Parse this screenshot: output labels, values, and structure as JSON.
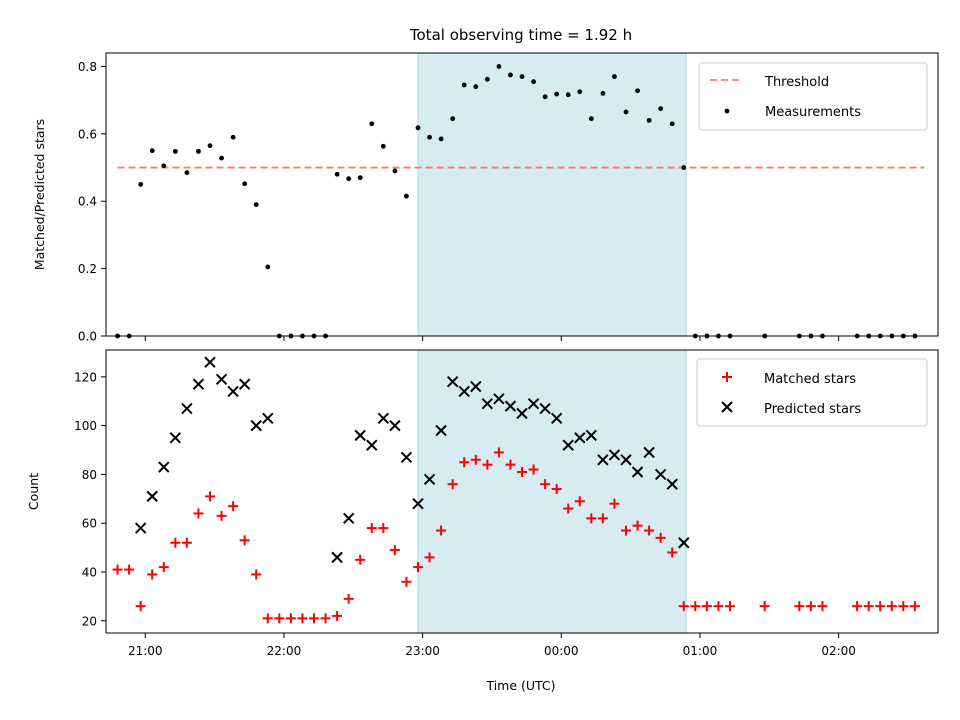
{
  "chart_data": [
    {
      "type": "scatter",
      "title": "Total observing time = 1.92 h",
      "xlabel": "",
      "ylabel": "Matched/Predicted stars",
      "xlim": [
        "20:43",
        "02:43"
      ],
      "ylim": [
        0,
        0.84
      ],
      "yticks": [
        0.0,
        0.2,
        0.4,
        0.6,
        0.8
      ],
      "ytick_labels": [
        "0.0",
        "0.2",
        "0.4",
        "0.6",
        "0.8"
      ],
      "grid": false,
      "legend_position": "top-right",
      "highlight_span": [
        "22:58",
        "00:54"
      ],
      "threshold": {
        "name": "Threshold",
        "y": 0.5,
        "x_range": [
          "20:48",
          "02:37"
        ],
        "color": "#ff7777",
        "style": "dashed"
      },
      "series": [
        {
          "name": "Measurements",
          "color": "#000000",
          "marker": "dot",
          "points": [
            [
              "20:48",
              0.0
            ],
            [
              "20:53",
              0.0
            ],
            [
              "20:58",
              0.45
            ],
            [
              "21:03",
              0.55
            ],
            [
              "21:08",
              0.505
            ],
            [
              "21:13",
              0.548
            ],
            [
              "21:18",
              0.485
            ],
            [
              "21:23",
              0.548
            ],
            [
              "21:28",
              0.565
            ],
            [
              "21:33",
              0.528
            ],
            [
              "21:38",
              0.59
            ],
            [
              "21:43",
              0.452
            ],
            [
              "21:48",
              0.39
            ],
            [
              "21:53",
              0.205
            ],
            [
              "21:58",
              0.0
            ],
            [
              "22:03",
              0.0
            ],
            [
              "22:08",
              0.0
            ],
            [
              "22:13",
              0.0
            ],
            [
              "22:18",
              0.0
            ],
            [
              "22:23",
              0.48
            ],
            [
              "22:28",
              0.467
            ],
            [
              "22:33",
              0.47
            ],
            [
              "22:38",
              0.63
            ],
            [
              "22:43",
              0.563
            ],
            [
              "22:48",
              0.49
            ],
            [
              "22:53",
              0.415
            ],
            [
              "22:58",
              0.618
            ],
            [
              "23:03",
              0.59
            ],
            [
              "23:08",
              0.585
            ],
            [
              "23:13",
              0.645
            ],
            [
              "23:18",
              0.745
            ],
            [
              "23:23",
              0.74
            ],
            [
              "23:28",
              0.762
            ],
            [
              "23:33",
              0.8
            ],
            [
              "23:38",
              0.775
            ],
            [
              "23:43",
              0.77
            ],
            [
              "23:48",
              0.755
            ],
            [
              "23:53",
              0.71
            ],
            [
              "23:58",
              0.718
            ],
            [
              "00:03",
              0.716
            ],
            [
              "00:08",
              0.725
            ],
            [
              "00:13",
              0.645
            ],
            [
              "00:18",
              0.72
            ],
            [
              "00:23",
              0.77
            ],
            [
              "00:28",
              0.665
            ],
            [
              "00:33",
              0.728
            ],
            [
              "00:38",
              0.64
            ],
            [
              "00:43",
              0.675
            ],
            [
              "00:48",
              0.63
            ],
            [
              "00:53",
              0.5
            ],
            [
              "00:58",
              0.0
            ],
            [
              "01:03",
              0.0
            ],
            [
              "01:08",
              0.0
            ],
            [
              "01:13",
              0.0
            ],
            [
              "01:28",
              0.0
            ],
            [
              "01:43",
              0.0
            ],
            [
              "01:48",
              0.0
            ],
            [
              "01:53",
              0.0
            ],
            [
              "02:08",
              0.0
            ],
            [
              "02:13",
              0.0
            ],
            [
              "02:18",
              0.0
            ],
            [
              "02:23",
              0.0
            ],
            [
              "02:28",
              0.0
            ],
            [
              "02:33",
              0.0
            ]
          ]
        }
      ]
    },
    {
      "type": "scatter",
      "title": "",
      "xlabel": "Time (UTC)",
      "ylabel": "Count",
      "xlim": [
        "20:43",
        "02:43"
      ],
      "ylim": [
        15,
        131
      ],
      "xticks": [
        "21:00",
        "22:00",
        "23:00",
        "00:00",
        "01:00",
        "02:00"
      ],
      "yticks": [
        20,
        40,
        60,
        80,
        100,
        120
      ],
      "grid": false,
      "legend_position": "top-right",
      "highlight_span": [
        "22:58",
        "00:54"
      ],
      "series": [
        {
          "name": "Matched stars",
          "color": "#ff0000",
          "marker": "plus",
          "points": [
            [
              "20:48",
              41
            ],
            [
              "20:53",
              41
            ],
            [
              "20:58",
              26
            ],
            [
              "21:03",
              39
            ],
            [
              "21:08",
              42
            ],
            [
              "21:13",
              52
            ],
            [
              "21:18",
              52
            ],
            [
              "21:23",
              64
            ],
            [
              "21:28",
              71
            ],
            [
              "21:33",
              63
            ],
            [
              "21:38",
              67
            ],
            [
              "21:43",
              53
            ],
            [
              "21:48",
              39
            ],
            [
              "21:53",
              21
            ],
            [
              "21:58",
              21
            ],
            [
              "22:03",
              21
            ],
            [
              "22:08",
              21
            ],
            [
              "22:13",
              21
            ],
            [
              "22:18",
              21
            ],
            [
              "22:23",
              22
            ],
            [
              "22:28",
              29
            ],
            [
              "22:33",
              45
            ],
            [
              "22:38",
              58
            ],
            [
              "22:43",
              58
            ],
            [
              "22:48",
              49
            ],
            [
              "22:53",
              36
            ],
            [
              "22:58",
              42
            ],
            [
              "23:03",
              46
            ],
            [
              "23:08",
              57
            ],
            [
              "23:13",
              76
            ],
            [
              "23:18",
              85
            ],
            [
              "23:23",
              86
            ],
            [
              "23:28",
              84
            ],
            [
              "23:33",
              89
            ],
            [
              "23:38",
              84
            ],
            [
              "23:43",
              81
            ],
            [
              "23:48",
              82
            ],
            [
              "23:53",
              76
            ],
            [
              "23:58",
              74
            ],
            [
              "00:03",
              66
            ],
            [
              "00:08",
              69
            ],
            [
              "00:13",
              62
            ],
            [
              "00:18",
              62
            ],
            [
              "00:23",
              68
            ],
            [
              "00:28",
              57
            ],
            [
              "00:33",
              59
            ],
            [
              "00:38",
              57
            ],
            [
              "00:43",
              54
            ],
            [
              "00:48",
              48
            ],
            [
              "00:53",
              26
            ],
            [
              "00:58",
              26
            ],
            [
              "01:03",
              26
            ],
            [
              "01:08",
              26
            ],
            [
              "01:13",
              26
            ],
            [
              "01:28",
              26
            ],
            [
              "01:43",
              26
            ],
            [
              "01:48",
              26
            ],
            [
              "01:53",
              26
            ],
            [
              "02:08",
              26
            ],
            [
              "02:13",
              26
            ],
            [
              "02:18",
              26
            ],
            [
              "02:23",
              26
            ],
            [
              "02:28",
              26
            ],
            [
              "02:33",
              26
            ]
          ]
        },
        {
          "name": "Predicted stars",
          "color": "#000000",
          "marker": "x",
          "points": [
            [
              "20:58",
              58
            ],
            [
              "21:03",
              71
            ],
            [
              "21:08",
              83
            ],
            [
              "21:13",
              95
            ],
            [
              "21:18",
              107
            ],
            [
              "21:23",
              117
            ],
            [
              "21:28",
              126
            ],
            [
              "21:33",
              119
            ],
            [
              "21:38",
              114
            ],
            [
              "21:43",
              117
            ],
            [
              "21:48",
              100
            ],
            [
              "21:53",
              103
            ],
            [
              "22:23",
              46
            ],
            [
              "22:28",
              62
            ],
            [
              "22:33",
              96
            ],
            [
              "22:38",
              92
            ],
            [
              "22:43",
              103
            ],
            [
              "22:48",
              100
            ],
            [
              "22:53",
              87
            ],
            [
              "22:58",
              68
            ],
            [
              "23:03",
              78
            ],
            [
              "23:08",
              98
            ],
            [
              "23:13",
              118
            ],
            [
              "23:18",
              114
            ],
            [
              "23:23",
              116
            ],
            [
              "23:28",
              109
            ],
            [
              "23:33",
              111
            ],
            [
              "23:38",
              108
            ],
            [
              "23:43",
              105
            ],
            [
              "23:48",
              109
            ],
            [
              "23:53",
              107
            ],
            [
              "23:58",
              103
            ],
            [
              "00:03",
              92
            ],
            [
              "00:08",
              95
            ],
            [
              "00:13",
              96
            ],
            [
              "00:18",
              86
            ],
            [
              "00:23",
              88
            ],
            [
              "00:28",
              86
            ],
            [
              "00:33",
              81
            ],
            [
              "00:38",
              89
            ],
            [
              "00:43",
              80
            ],
            [
              "00:48",
              76
            ],
            [
              "00:53",
              52
            ]
          ]
        }
      ]
    }
  ]
}
